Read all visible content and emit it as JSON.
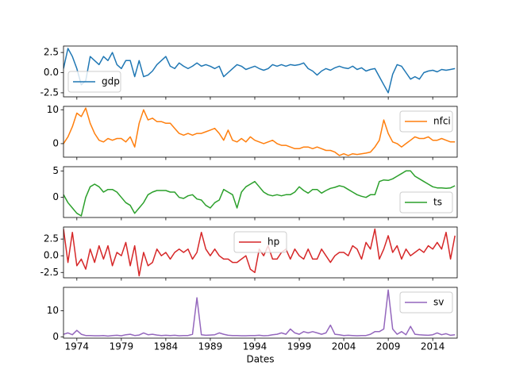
{
  "chart_data": [
    {
      "type": "line",
      "legend": "lower left",
      "xlim": [
        1972.5,
        2016.75
      ],
      "ylim": [
        -3.0,
        3.3
      ],
      "yticks": [
        -2.5,
        {
          "value": 0,
          "label": "0.0"
        },
        2.5
      ],
      "x": [
        1972.5,
        1973,
        1973.5,
        1974,
        1974.5,
        1975,
        1975.5,
        1976,
        1976.5,
        1977,
        1977.5,
        1978,
        1978.5,
        1979,
        1979.5,
        1980,
        1980.5,
        1981,
        1981.5,
        1982,
        1982.5,
        1983,
        1983.5,
        1984,
        1984.5,
        1985,
        1985.5,
        1986,
        1986.5,
        1987,
        1987.5,
        1988,
        1988.5,
        1989,
        1989.5,
        1990,
        1990.5,
        1991,
        1991.5,
        1992,
        1992.5,
        1993,
        1993.5,
        1994,
        1994.5,
        1995,
        1995.5,
        1996,
        1996.5,
        1997,
        1997.5,
        1998,
        1998.5,
        1999,
        1999.5,
        2000,
        2000.5,
        2001,
        2001.5,
        2002,
        2002.5,
        2003,
        2003.5,
        2004,
        2004.5,
        2005,
        2005.5,
        2006,
        2006.5,
        2007,
        2007.5,
        2008,
        2008.5,
        2009,
        2009.5,
        2010,
        2010.5,
        2011,
        2011.5,
        2012,
        2012.5,
        2013,
        2013.5,
        2014,
        2014.5,
        2015,
        2015.5,
        2016,
        2016.5
      ],
      "series": [
        {
          "name": "gdp",
          "color": "#1f77b4",
          "values": [
            0.5,
            3.0,
            2.0,
            0.5,
            -1.5,
            -1.0,
            2.0,
            1.5,
            1.0,
            2.0,
            1.5,
            2.5,
            1.0,
            0.5,
            1.5,
            1.5,
            -0.5,
            1.5,
            -0.5,
            -0.3,
            0.2,
            1.0,
            1.5,
            2.0,
            0.8,
            0.5,
            1.2,
            0.8,
            0.5,
            0.8,
            1.2,
            0.8,
            1.0,
            0.8,
            0.5,
            0.8,
            -0.5,
            0.0,
            0.5,
            1.0,
            0.8,
            0.4,
            0.6,
            0.8,
            0.5,
            0.3,
            0.5,
            1.0,
            0.8,
            1.0,
            0.8,
            1.0,
            0.9,
            1.0,
            1.2,
            0.5,
            0.2,
            -0.3,
            0.2,
            0.5,
            0.3,
            0.6,
            0.8,
            0.6,
            0.5,
            0.8,
            0.4,
            0.6,
            0.2,
            0.4,
            0.5,
            -0.5,
            -1.5,
            -2.5,
            -0.2,
            1.0,
            0.8,
            0.0,
            -0.8,
            -0.5,
            -0.8,
            0.0,
            0.2,
            0.3,
            0.1,
            0.4,
            0.3,
            0.4,
            0.5
          ]
        }
      ]
    },
    {
      "type": "line",
      "legend": "upper right",
      "xlim": [
        1972.5,
        2016.75
      ],
      "ylim": [
        -4,
        11
      ],
      "yticks": [
        0,
        10
      ],
      "x": [
        1972.5,
        1973,
        1973.5,
        1974,
        1974.5,
        1975,
        1975.5,
        1976,
        1976.5,
        1977,
        1977.5,
        1978,
        1978.5,
        1979,
        1979.5,
        1980,
        1980.5,
        1981,
        1981.5,
        1982,
        1982.5,
        1983,
        1983.5,
        1984,
        1984.5,
        1985,
        1985.5,
        1986,
        1986.5,
        1987,
        1987.5,
        1988,
        1988.5,
        1989,
        1989.5,
        1990,
        1990.5,
        1991,
        1991.5,
        1992,
        1992.5,
        1993,
        1993.5,
        1994,
        1994.5,
        1995,
        1995.5,
        1996,
        1996.5,
        1997,
        1997.5,
        1998,
        1998.5,
        1999,
        1999.5,
        2000,
        2000.5,
        2001,
        2001.5,
        2002,
        2002.5,
        2003,
        2003.5,
        2004,
        2004.5,
        2005,
        2005.5,
        2006,
        2006.5,
        2007,
        2007.5,
        2008,
        2008.5,
        2009,
        2009.5,
        2010,
        2010.5,
        2011,
        2011.5,
        2012,
        2012.5,
        2013,
        2013.5,
        2014,
        2014.5,
        2015,
        2015.5,
        2016,
        2016.5
      ],
      "series": [
        {
          "name": "nfci",
          "color": "#ff7f0e",
          "values": [
            0.0,
            2.0,
            5.0,
            9.0,
            8.0,
            10.5,
            6.0,
            3.0,
            1.0,
            0.5,
            1.5,
            1.0,
            1.5,
            1.5,
            0.5,
            2.0,
            -1.0,
            6.0,
            10.0,
            7.0,
            7.5,
            6.5,
            6.5,
            6.0,
            6.0,
            4.5,
            3.0,
            2.5,
            3.0,
            2.5,
            3.0,
            3.0,
            3.5,
            4.0,
            4.5,
            3.0,
            1.0,
            4.0,
            1.0,
            0.5,
            1.5,
            0.5,
            2.0,
            1.0,
            0.5,
            0.0,
            0.5,
            1.0,
            0.0,
            -0.5,
            -0.5,
            -1.0,
            -1.5,
            -1.5,
            -1.0,
            -1.0,
            -1.5,
            -1.0,
            -1.5,
            -2.0,
            -2.0,
            -2.5,
            -3.5,
            -3.0,
            -3.5,
            -3.0,
            -3.2,
            -3.0,
            -2.8,
            -2.5,
            -1.0,
            1.0,
            7.0,
            3.0,
            0.5,
            0.0,
            -1.0,
            0.0,
            1.0,
            2.0,
            1.5,
            1.5,
            2.0,
            1.0,
            1.0,
            1.5,
            1.0,
            0.5,
            0.5
          ]
        }
      ]
    },
    {
      "type": "line",
      "legend": "lower right",
      "xlim": [
        1972.5,
        2016.75
      ],
      "ylim": [
        -3.8,
        5.8
      ],
      "yticks": [
        0,
        5
      ],
      "x": [
        1972.5,
        1973,
        1973.5,
        1974,
        1974.5,
        1975,
        1975.5,
        1976,
        1976.5,
        1977,
        1977.5,
        1978,
        1978.5,
        1979,
        1979.5,
        1980,
        1980.5,
        1981,
        1981.5,
        1982,
        1982.5,
        1983,
        1983.5,
        1984,
        1984.5,
        1985,
        1985.5,
        1986,
        1986.5,
        1987,
        1987.5,
        1988,
        1988.5,
        1989,
        1989.5,
        1990,
        1990.5,
        1991,
        1991.5,
        1992,
        1992.5,
        1993,
        1993.5,
        1994,
        1994.5,
        1995,
        1995.5,
        1996,
        1996.5,
        1997,
        1997.5,
        1998,
        1998.5,
        1999,
        1999.5,
        2000,
        2000.5,
        2001,
        2001.5,
        2002,
        2002.5,
        2003,
        2003.5,
        2004,
        2004.5,
        2005,
        2005.5,
        2006,
        2006.5,
        2007,
        2007.5,
        2008,
        2008.5,
        2009,
        2009.5,
        2010,
        2010.5,
        2011,
        2011.5,
        2012,
        2012.5,
        2013,
        2013.5,
        2014,
        2014.5,
        2015,
        2015.5,
        2016,
        2016.5
      ],
      "series": [
        {
          "name": "ts",
          "color": "#2ca02c",
          "values": [
            0.5,
            -1.0,
            -2.0,
            -3.0,
            -3.5,
            0.0,
            2.0,
            2.5,
            2.0,
            1.0,
            1.5,
            1.5,
            1.0,
            0.0,
            -1.0,
            -1.5,
            -3.0,
            -2.0,
            -1.0,
            0.5,
            1.0,
            1.3,
            1.3,
            1.3,
            1.0,
            1.0,
            0.0,
            -0.2,
            0.3,
            0.5,
            -0.3,
            -0.5,
            -1.5,
            -2.0,
            -1.0,
            -0.5,
            1.5,
            1.0,
            0.5,
            -2.0,
            1.0,
            2.0,
            2.5,
            3.0,
            2.0,
            1.0,
            0.5,
            0.3,
            0.5,
            0.3,
            0.5,
            0.5,
            1.0,
            2.0,
            1.3,
            0.8,
            1.5,
            1.5,
            0.8,
            1.3,
            1.7,
            1.9,
            2.2,
            2.0,
            1.5,
            1.0,
            0.5,
            0.2,
            0.0,
            0.5,
            0.5,
            3.0,
            3.3,
            3.2,
            3.5,
            4.0,
            4.5,
            5.0,
            5.0,
            4.0,
            3.5,
            3.0,
            2.5,
            2.0,
            1.8,
            1.8,
            1.7,
            1.8,
            2.2
          ]
        }
      ]
    },
    {
      "type": "line",
      "legend": "upper center",
      "xlim": [
        1972.5,
        2016.75
      ],
      "ylim": [
        -3.3,
        4.3
      ],
      "yticks": [
        -2.5,
        {
          "value": 0,
          "label": "0.0"
        },
        2.5
      ],
      "x": [
        1972.5,
        1973,
        1973.5,
        1974,
        1974.5,
        1975,
        1975.5,
        1976,
        1976.5,
        1977,
        1977.5,
        1978,
        1978.5,
        1979,
        1979.5,
        1980,
        1980.5,
        1981,
        1981.5,
        1982,
        1982.5,
        1983,
        1983.5,
        1984,
        1984.5,
        1985,
        1985.5,
        1986,
        1986.5,
        1987,
        1987.5,
        1988,
        1988.5,
        1989,
        1989.5,
        1990,
        1990.5,
        1991,
        1991.5,
        1992,
        1992.5,
        1993,
        1993.5,
        1994,
        1994.5,
        1995,
        1995.5,
        1996,
        1996.5,
        1997,
        1997.5,
        1998,
        1998.5,
        1999,
        1999.5,
        2000,
        2000.5,
        2001,
        2001.5,
        2002,
        2002.5,
        2003,
        2003.5,
        2004,
        2004.5,
        2005,
        2005.5,
        2006,
        2006.5,
        2007,
        2007.5,
        2008,
        2008.5,
        2009,
        2009.5,
        2010,
        2010.5,
        2011,
        2011.5,
        2012,
        2012.5,
        2013,
        2013.5,
        2014,
        2014.5,
        2015,
        2015.5,
        2016,
        2016.5
      ],
      "series": [
        {
          "name": "hp",
          "color": "#d62728",
          "values": [
            4.0,
            -1.0,
            3.5,
            -1.5,
            -0.5,
            -2.0,
            1.0,
            -1.0,
            1.5,
            -0.5,
            1.5,
            -1.5,
            0.5,
            0.0,
            2.0,
            -1.5,
            1.5,
            -3.0,
            0.5,
            -1.5,
            -1.0,
            1.0,
            0.0,
            0.5,
            -0.5,
            0.5,
            1.0,
            0.5,
            1.0,
            -0.5,
            0.5,
            3.5,
            1.0,
            0.0,
            1.0,
            0.0,
            -0.5,
            -0.5,
            -1.0,
            -1.0,
            -0.5,
            0.0,
            -2.0,
            -2.5,
            1.0,
            0.0,
            1.5,
            -0.5,
            -0.5,
            0.5,
            1.0,
            -0.5,
            1.0,
            0.0,
            -0.5,
            1.0,
            -0.5,
            -0.5,
            1.0,
            0.0,
            -1.0,
            0.0,
            0.5,
            0.5,
            0.0,
            1.5,
            1.0,
            -0.5,
            2.0,
            1.0,
            4.0,
            -0.5,
            1.0,
            3.0,
            0.5,
            1.5,
            -0.5,
            1.0,
            0.0,
            0.5,
            1.0,
            0.5,
            1.5,
            1.0,
            2.0,
            1.0,
            3.5,
            -0.5,
            3.0
          ]
        }
      ]
    },
    {
      "type": "line",
      "legend": "upper right",
      "xlim": [
        1972.5,
        2016.75
      ],
      "ylim": [
        -0.5,
        19
      ],
      "yticks": [
        0,
        10
      ],
      "xticks": [
        1974,
        1979,
        1984,
        1989,
        1994,
        1999,
        2004,
        2009,
        2014
      ],
      "x_label": "Dates",
      "x": [
        1972.5,
        1973,
        1973.5,
        1974,
        1974.5,
        1975,
        1975.5,
        1976,
        1976.5,
        1977,
        1977.5,
        1978,
        1978.5,
        1979,
        1979.5,
        1980,
        1980.5,
        1981,
        1981.5,
        1982,
        1982.5,
        1983,
        1983.5,
        1984,
        1984.5,
        1985,
        1985.5,
        1986,
        1986.5,
        1987,
        1987.5,
        1988,
        1988.5,
        1989,
        1989.5,
        1990,
        1990.5,
        1991,
        1991.5,
        1992,
        1992.5,
        1993,
        1993.5,
        1994,
        1994.5,
        1995,
        1995.5,
        1996,
        1996.5,
        1997,
        1997.5,
        1998,
        1998.5,
        1999,
        1999.5,
        2000,
        2000.5,
        2001,
        2001.5,
        2002,
        2002.5,
        2003,
        2003.5,
        2004,
        2004.5,
        2005,
        2005.5,
        2006,
        2006.5,
        2007,
        2007.5,
        2008,
        2008.5,
        2009,
        2009.5,
        2010,
        2010.5,
        2011,
        2011.5,
        2012,
        2012.5,
        2013,
        2013.5,
        2014,
        2014.5,
        2015,
        2015.5,
        2016,
        2016.5
      ],
      "series": [
        {
          "name": "sv",
          "color": "#9467bd",
          "values": [
            1.0,
            1.5,
            0.8,
            2.5,
            1.0,
            0.5,
            0.5,
            0.4,
            0.4,
            0.5,
            0.3,
            0.5,
            0.6,
            0.4,
            0.8,
            1.0,
            0.5,
            0.7,
            1.5,
            0.8,
            1.0,
            0.7,
            0.5,
            0.6,
            0.5,
            0.6,
            0.4,
            0.5,
            0.5,
            1.0,
            15.0,
            0.8,
            0.6,
            0.7,
            0.8,
            1.5,
            1.0,
            0.6,
            0.5,
            0.5,
            0.4,
            0.4,
            0.5,
            0.5,
            0.6,
            0.4,
            0.5,
            0.8,
            1.0,
            1.5,
            1.0,
            3.0,
            1.5,
            1.0,
            2.0,
            1.5,
            2.0,
            1.5,
            1.0,
            1.5,
            4.5,
            1.0,
            0.8,
            0.5,
            0.6,
            0.5,
            0.4,
            0.5,
            0.5,
            1.0,
            2.0,
            2.0,
            3.0,
            18.0,
            3.0,
            1.0,
            2.0,
            0.8,
            4.0,
            1.0,
            0.8,
            0.7,
            0.6,
            0.8,
            1.5,
            0.8,
            1.2,
            0.6,
            0.8
          ]
        }
      ]
    }
  ]
}
